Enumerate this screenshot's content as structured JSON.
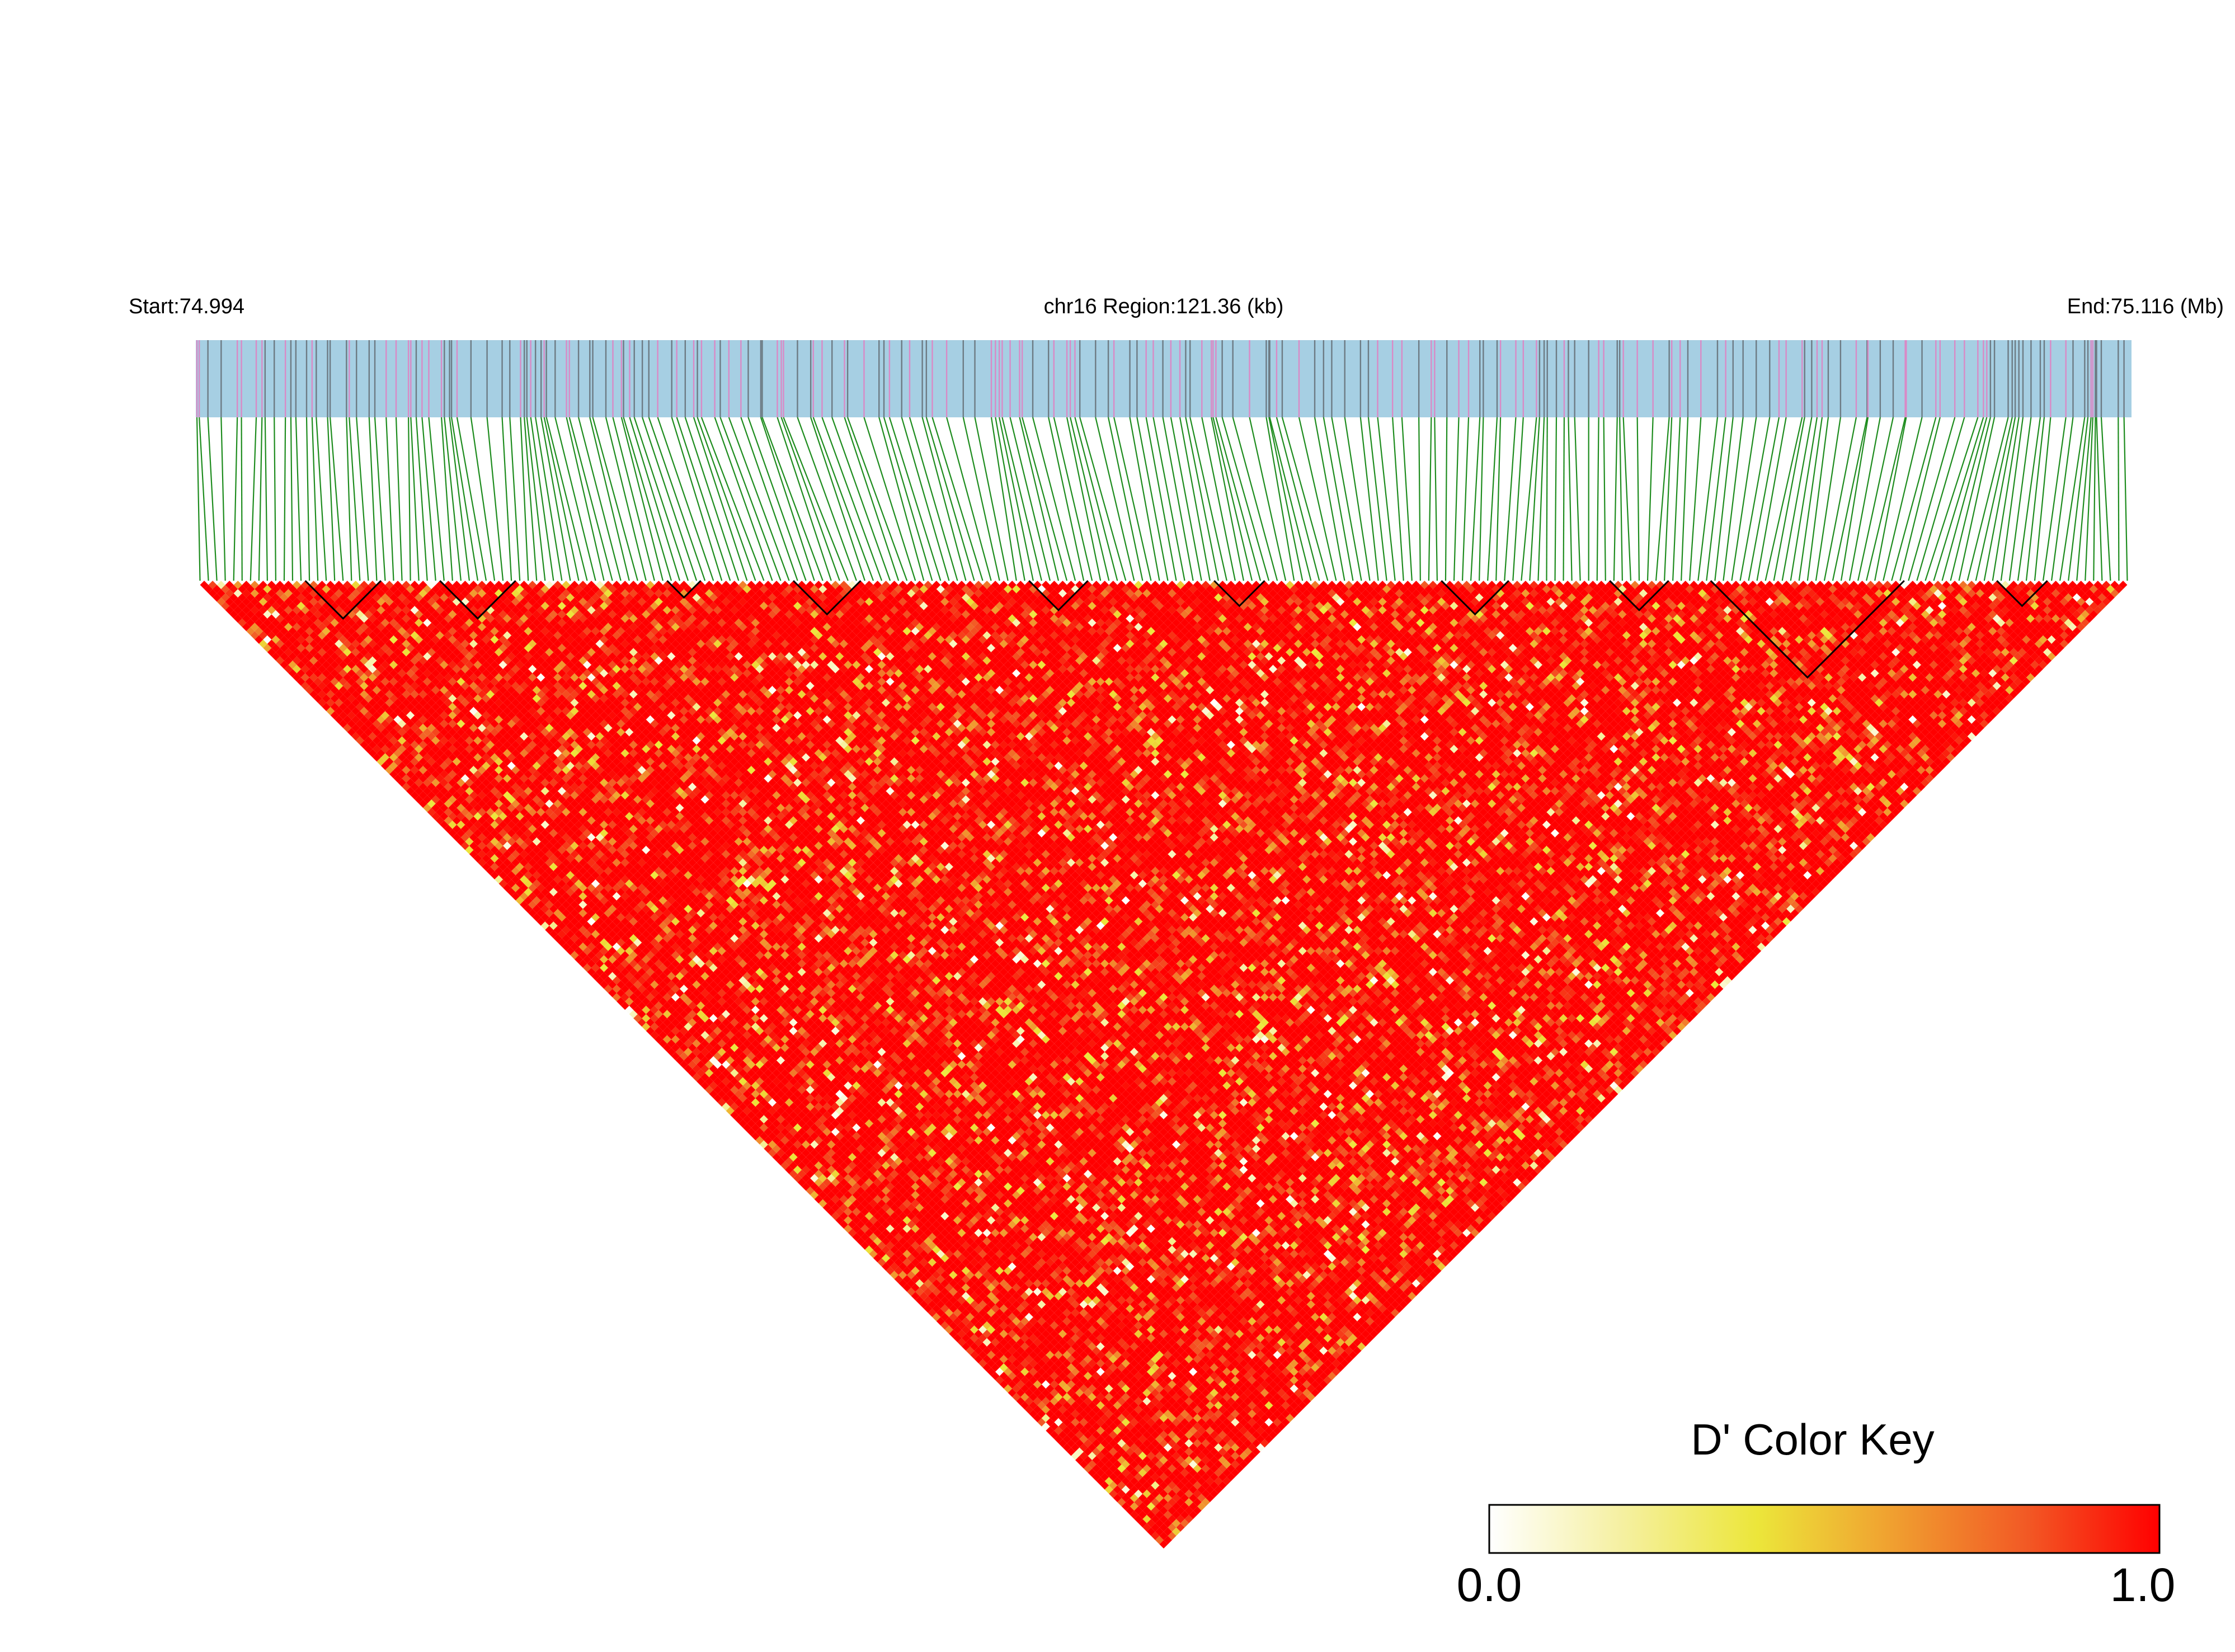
{
  "header": {
    "start_label": "Start:74.994",
    "region_label": "chr16 Region:121.36 (kb)",
    "end_label": "End:75.116 (Mb)"
  },
  "colors": {
    "track_background": "#a6cfe3",
    "snp_line_dark": "#6d7b84",
    "snp_line_pink": "#d98ac6",
    "connector_line": "#1e8c1e",
    "heat_low": "#ffffff",
    "heat_mid": "#ece63a",
    "heat_high": "#ff0000",
    "block_outline": "#000000"
  },
  "chart_data": {
    "type": "heatmap",
    "description_of_values": "pairwise D' between SNPs",
    "region": {
      "chromosome": "chr16",
      "start_mb": 74.994,
      "end_mb": 75.116,
      "length_kb": 121.36
    },
    "snp_count": 230,
    "value_range": [
      0.0,
      1.0
    ],
    "dominant_value": 1.0,
    "color_key": {
      "title": "D' Color Key",
      "min_label": "0.0",
      "max_label": "1.0",
      "stops": [
        "#ffffff",
        "#f5f0a0",
        "#ece63a",
        "#f0a030",
        "#f25a25",
        "#ff0000"
      ]
    },
    "haplotype_blocks_snp_ranges": [
      [
        13,
        21
      ],
      [
        29,
        37
      ],
      [
        56,
        59
      ],
      [
        71,
        78
      ],
      [
        99,
        105
      ],
      [
        121,
        126
      ],
      [
        148,
        155
      ],
      [
        168,
        174
      ],
      [
        180,
        202
      ],
      [
        214,
        219
      ]
    ]
  }
}
